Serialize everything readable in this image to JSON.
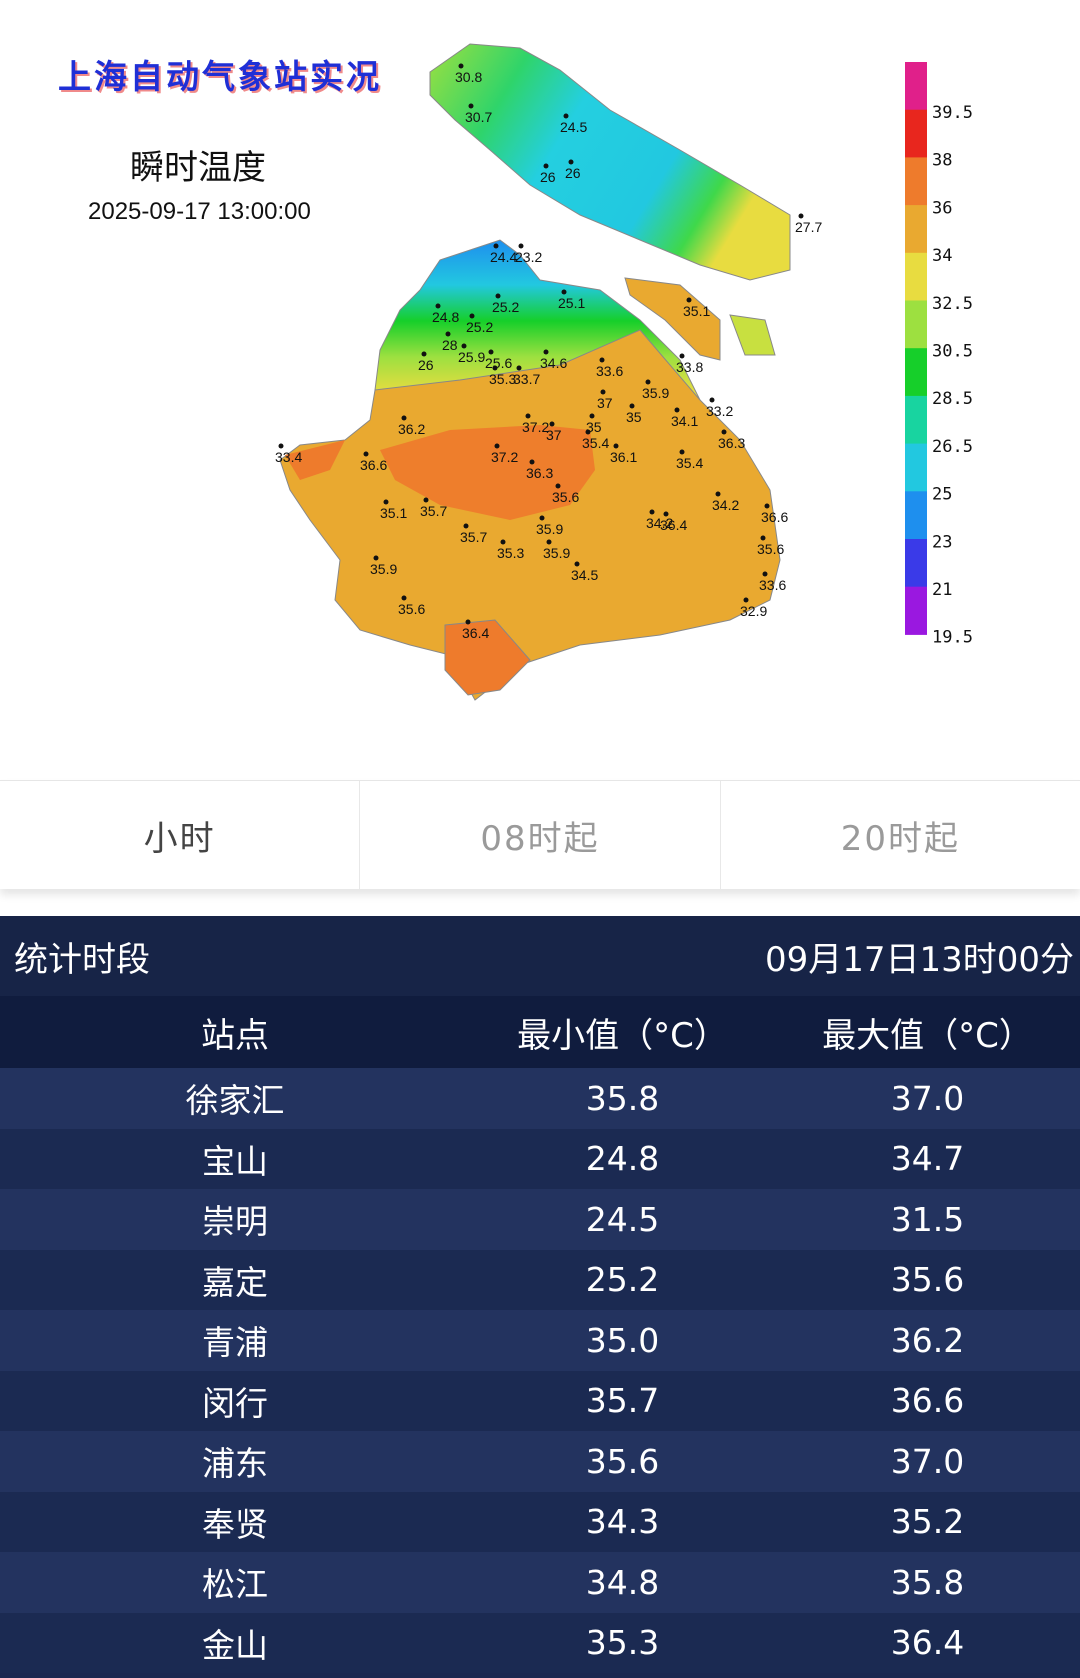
{
  "map": {
    "title": "上海自动气象站实况",
    "variable": "瞬时温度",
    "timestamp": "2025-09-17 13:00:00",
    "legend": [
      {
        "label": "39.5",
        "color": "#e0208a"
      },
      {
        "label": "38",
        "color": "#e8261e"
      },
      {
        "label": "36",
        "color": "#ee7b2c"
      },
      {
        "label": "34",
        "color": "#e9a930"
      },
      {
        "label": "32.5",
        "color": "#e8dc40"
      },
      {
        "label": "30.5",
        "color": "#9de040"
      },
      {
        "label": "28.5",
        "color": "#16cf2a"
      },
      {
        "label": "26.5",
        "color": "#18d4a0"
      },
      {
        "label": "25",
        "color": "#22c8e0"
      },
      {
        "label": "23",
        "color": "#1e8fee"
      },
      {
        "label": "21",
        "color": "#3a3ae8"
      },
      {
        "label": "19.5",
        "color": "#9a18e0"
      }
    ],
    "stations": [
      "30.8",
      "30.7",
      "24.5",
      "26",
      "26",
      "27.7",
      "24.4",
      "23.2",
      "24.8",
      "25.2",
      "25.1",
      "25.2",
      "28",
      "25.9",
      "26",
      "25.6",
      "34.6",
      "35.1",
      "33.6",
      "33.8",
      "35.3",
      "33.7",
      "35.9",
      "37",
      "33.2",
      "35",
      "35",
      "34.1",
      "36.2",
      "37.2",
      "37",
      "35.4",
      "33.4",
      "36.3",
      "36.6",
      "37.2",
      "36.3",
      "36.1",
      "35.4",
      "36.6",
      "35.6",
      "34.2",
      "35.1",
      "35.7",
      "36.4",
      "35.9",
      "34.2",
      "35.7",
      "35.3",
      "35.9",
      "35.6",
      "35.9",
      "34.5",
      "33.6",
      "35.6",
      "32.9",
      "36.4"
    ]
  },
  "tabs": [
    {
      "label": "小时",
      "active": true
    },
    {
      "label": "08时起",
      "active": false
    },
    {
      "label": "20时起",
      "active": false
    }
  ],
  "table": {
    "period_label": "统计时段",
    "period_value": "09月17日13时00分",
    "headers": [
      "站点",
      "最小值（°C）",
      "最大值（°C）"
    ],
    "rows": [
      {
        "station": "徐家汇",
        "min": "35.8",
        "max": "37.0"
      },
      {
        "station": "宝山",
        "min": "24.8",
        "max": "34.7"
      },
      {
        "station": "崇明",
        "min": "24.5",
        "max": "31.5"
      },
      {
        "station": "嘉定",
        "min": "25.2",
        "max": "35.6"
      },
      {
        "station": "青浦",
        "min": "35.0",
        "max": "36.2"
      },
      {
        "station": "闵行",
        "min": "35.7",
        "max": "36.6"
      },
      {
        "station": "浦东",
        "min": "35.6",
        "max": "37.0"
      },
      {
        "station": "奉贤",
        "min": "34.3",
        "max": "35.2"
      },
      {
        "station": "松江",
        "min": "34.8",
        "max": "35.8"
      },
      {
        "station": "金山",
        "min": "35.3",
        "max": "36.4"
      }
    ]
  }
}
